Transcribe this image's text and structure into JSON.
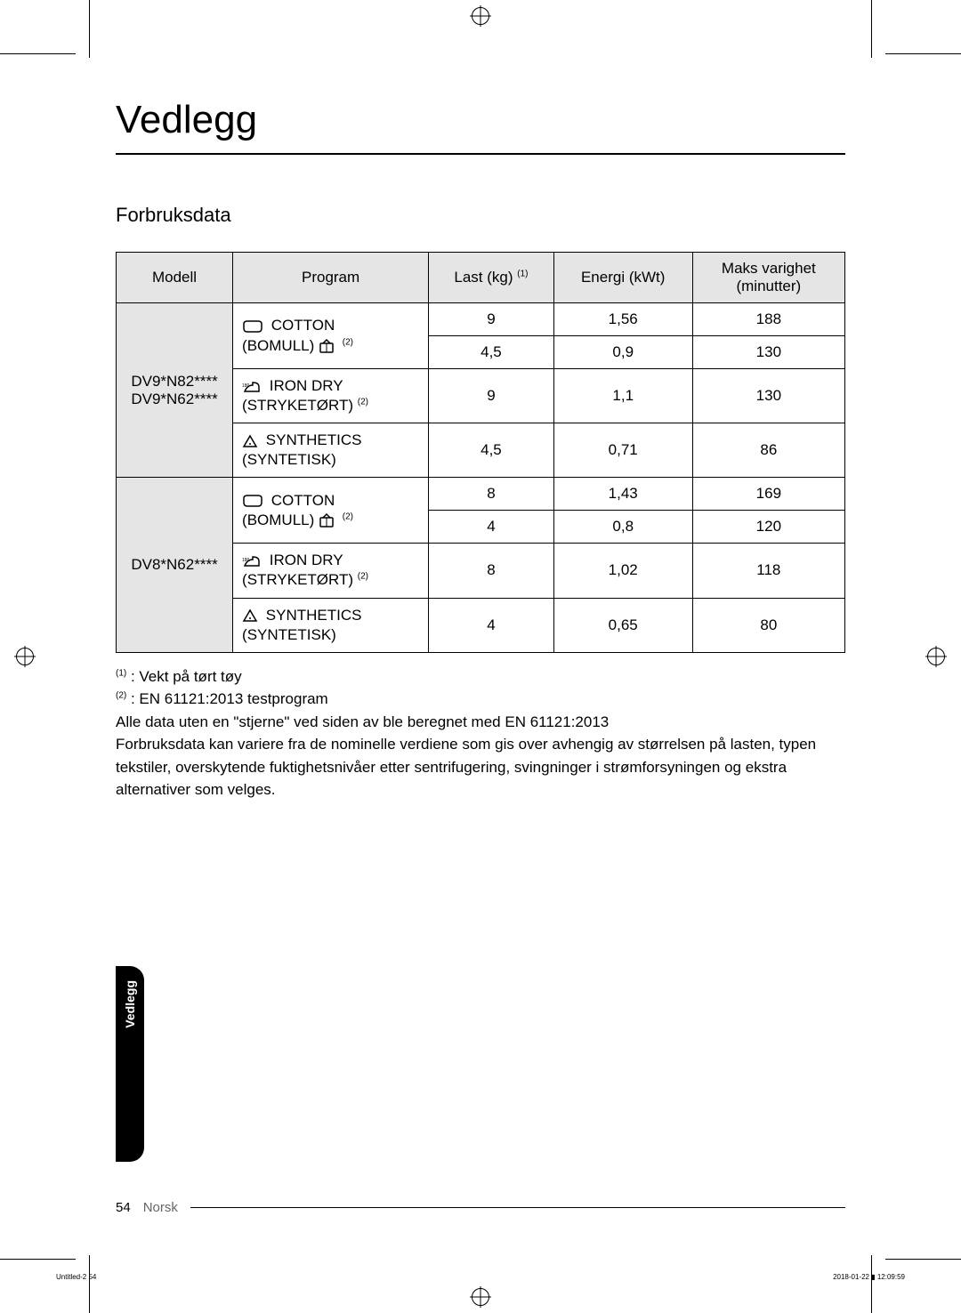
{
  "page": {
    "title": "Vedlegg",
    "subtitle": "Forbruksdata",
    "side_tab": "Vedlegg",
    "page_number": "54",
    "language": "Norsk"
  },
  "table": {
    "headers": {
      "model": "Modell",
      "program": "Program",
      "load": "Last (kg)",
      "load_sup": "(1)",
      "energy": "Energi (kWt)",
      "duration_l1": "Maks varighet",
      "duration_l2": "(minutter)"
    },
    "model_groups": [
      {
        "model_l1": "DV9*N82****",
        "model_l2": "DV9*N62****",
        "rows": [
          {
            "program_key": "cotton",
            "is_subrow_of_prev": false,
            "load": "9",
            "energy": "1,56",
            "duration": "188"
          },
          {
            "program_key": "cotton",
            "is_subrow_of_prev": true,
            "load": "4,5",
            "energy": "0,9",
            "duration": "130"
          },
          {
            "program_key": "iron",
            "is_subrow_of_prev": false,
            "load": "9",
            "energy": "1,1",
            "duration": "130"
          },
          {
            "program_key": "synth",
            "is_subrow_of_prev": false,
            "load": "4,5",
            "energy": "0,71",
            "duration": "86"
          }
        ]
      },
      {
        "model_l1": "DV8*N62****",
        "model_l2": "",
        "rows": [
          {
            "program_key": "cotton",
            "is_subrow_of_prev": false,
            "load": "8",
            "energy": "1,43",
            "duration": "169"
          },
          {
            "program_key": "cotton",
            "is_subrow_of_prev": true,
            "load": "4",
            "energy": "0,8",
            "duration": "120"
          },
          {
            "program_key": "iron",
            "is_subrow_of_prev": false,
            "load": "8",
            "energy": "1,02",
            "duration": "118"
          },
          {
            "program_key": "synth",
            "is_subrow_of_prev": false,
            "load": "4",
            "energy": "0,65",
            "duration": "80"
          }
        ]
      }
    ],
    "programs": {
      "cotton": {
        "label_l1": "COTTON",
        "label_l2": "(BOMULL)",
        "sup": "(2)",
        "icon": "cotton",
        "trailing_icon": "cupboard"
      },
      "iron": {
        "label_l1": "IRON DRY",
        "label_l2": "(STRYKETØRT)",
        "sup": "(2)",
        "icon": "iron",
        "trailing_icon": ""
      },
      "synth": {
        "label_l1": "SYNTHETICS",
        "label_l2": "(SYNTETISK)",
        "sup": "",
        "icon": "synth",
        "trailing_icon": ""
      }
    }
  },
  "notes": {
    "n1_sup": "(1)",
    "n1": " : Vekt på tørt tøy",
    "n2_sup": "(2)",
    "n2": " : EN 61121:2013 testprogram",
    "p1": "Alle data uten en \"stjerne\" ved siden av ble beregnet med EN 61121:2013",
    "p2": "Forbruksdata kan variere fra de nominelle verdiene som gis over avhengig av størrelsen på lasten, typen tekstiler, overskytende fuktighetsnivåer etter sentrifugering, svingninger i strømforsyningen og ekstra alternativer som velges."
  },
  "tiny_footer": {
    "left": "Untitled-2   54",
    "right": "2018-01-22   ▮ 12:09:59"
  },
  "style": {
    "colors": {
      "text": "#000000",
      "header_bg": "#e5e5e5",
      "border": "#000000",
      "tab_bg": "#000000",
      "tab_text": "#ffffff",
      "lang_text": "#666666"
    },
    "fonts": {
      "title_size_pt": 33,
      "subtitle_size_pt": 17,
      "body_size_pt": 13,
      "sup_size_pt": 8
    }
  }
}
